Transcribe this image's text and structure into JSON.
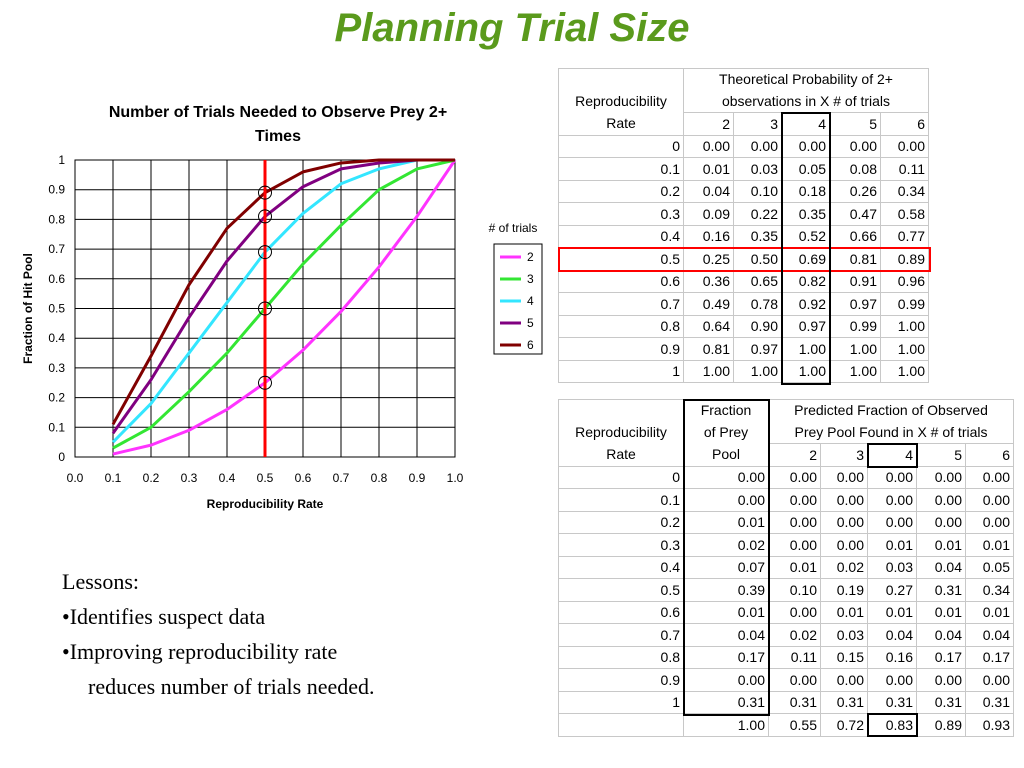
{
  "slide_title": "Planning Trial Size",
  "chart_data": {
    "type": "line",
    "title": "Number of Trials Needed to Observe Prey 2+ Times",
    "xlabel": "Reproducibility Rate",
    "ylabel": "Fraction of Hit Pool",
    "x": [
      0.1,
      0.2,
      0.3,
      0.4,
      0.5,
      0.6,
      0.7,
      0.8,
      0.9,
      1.0
    ],
    "xlim": [
      0.0,
      1.0
    ],
    "ylim": [
      0,
      1
    ],
    "xticks": [
      "0.0",
      "0.1",
      "0.2",
      "0.3",
      "0.4",
      "0.5",
      "0.6",
      "0.7",
      "0.8",
      "0.9",
      "1.0"
    ],
    "yticks": [
      "0",
      "0.1",
      "0.2",
      "0.3",
      "0.4",
      "0.5",
      "0.6",
      "0.7",
      "0.8",
      "0.9",
      "1"
    ],
    "grid": true,
    "legend_title": "# of trials",
    "legend_position": "right",
    "series": [
      {
        "name": "2",
        "color": "#ff33ff",
        "values": [
          0.01,
          0.04,
          0.09,
          0.16,
          0.25,
          0.36,
          0.49,
          0.64,
          0.81,
          1.0
        ]
      },
      {
        "name": "3",
        "color": "#33e633",
        "values": [
          0.03,
          0.1,
          0.22,
          0.35,
          0.5,
          0.65,
          0.78,
          0.9,
          0.97,
          1.0
        ]
      },
      {
        "name": "4",
        "color": "#33e6ff",
        "values": [
          0.05,
          0.18,
          0.35,
          0.52,
          0.69,
          0.82,
          0.92,
          0.97,
          1.0,
          1.0
        ]
      },
      {
        "name": "5",
        "color": "#800080",
        "values": [
          0.08,
          0.26,
          0.47,
          0.66,
          0.81,
          0.91,
          0.97,
          0.99,
          1.0,
          1.0
        ]
      },
      {
        "name": "6",
        "color": "#800000",
        "values": [
          0.11,
          0.34,
          0.58,
          0.77,
          0.89,
          0.96,
          0.99,
          1.0,
          1.0,
          1.0
        ]
      }
    ],
    "marker_line": {
      "x": 0.5,
      "color": "#ff0000"
    },
    "circled_points": [
      0.25,
      0.5,
      0.69,
      0.81,
      0.89
    ]
  },
  "table1": {
    "rate_header": [
      "Reproducibility",
      "Rate"
    ],
    "group_header": [
      "Theoretical Probability of 2+",
      "observations in X # of trials"
    ],
    "trials": [
      "2",
      "3",
      "4",
      "5",
      "6"
    ],
    "rows": [
      {
        "rate": "0",
        "vals": [
          "0.00",
          "0.00",
          "0.00",
          "0.00",
          "0.00"
        ]
      },
      {
        "rate": "0.1",
        "vals": [
          "0.01",
          "0.03",
          "0.05",
          "0.08",
          "0.11"
        ]
      },
      {
        "rate": "0.2",
        "vals": [
          "0.04",
          "0.10",
          "0.18",
          "0.26",
          "0.34"
        ]
      },
      {
        "rate": "0.3",
        "vals": [
          "0.09",
          "0.22",
          "0.35",
          "0.47",
          "0.58"
        ]
      },
      {
        "rate": "0.4",
        "vals": [
          "0.16",
          "0.35",
          "0.52",
          "0.66",
          "0.77"
        ]
      },
      {
        "rate": "0.5",
        "vals": [
          "0.25",
          "0.50",
          "0.69",
          "0.81",
          "0.89"
        ]
      },
      {
        "rate": "0.6",
        "vals": [
          "0.36",
          "0.65",
          "0.82",
          "0.91",
          "0.96"
        ]
      },
      {
        "rate": "0.7",
        "vals": [
          "0.49",
          "0.78",
          "0.92",
          "0.97",
          "0.99"
        ]
      },
      {
        "rate": "0.8",
        "vals": [
          "0.64",
          "0.90",
          "0.97",
          "0.99",
          "1.00"
        ]
      },
      {
        "rate": "0.9",
        "vals": [
          "0.81",
          "0.97",
          "1.00",
          "1.00",
          "1.00"
        ]
      },
      {
        "rate": "1",
        "vals": [
          "1.00",
          "1.00",
          "1.00",
          "1.00",
          "1.00"
        ]
      }
    ],
    "highlight_color": "#ff0000"
  },
  "table2": {
    "rate_header": [
      "Reproducibility",
      "Rate"
    ],
    "fraction_header": [
      "Fraction",
      "of Prey",
      "Pool"
    ],
    "group_header": [
      "Predicted Fraction of Observed",
      "Prey Pool Found in X # of trials"
    ],
    "trials": [
      "2",
      "3",
      "4",
      "5",
      "6"
    ],
    "rows": [
      {
        "rate": "0",
        "frac": "0.00",
        "vals": [
          "0.00",
          "0.00",
          "0.00",
          "0.00",
          "0.00"
        ]
      },
      {
        "rate": "0.1",
        "frac": "0.00",
        "vals": [
          "0.00",
          "0.00",
          "0.00",
          "0.00",
          "0.00"
        ]
      },
      {
        "rate": "0.2",
        "frac": "0.01",
        "vals": [
          "0.00",
          "0.00",
          "0.00",
          "0.00",
          "0.00"
        ]
      },
      {
        "rate": "0.3",
        "frac": "0.02",
        "vals": [
          "0.00",
          "0.00",
          "0.01",
          "0.01",
          "0.01"
        ]
      },
      {
        "rate": "0.4",
        "frac": "0.07",
        "vals": [
          "0.01",
          "0.02",
          "0.03",
          "0.04",
          "0.05"
        ]
      },
      {
        "rate": "0.5",
        "frac": "0.39",
        "vals": [
          "0.10",
          "0.19",
          "0.27",
          "0.31",
          "0.34"
        ]
      },
      {
        "rate": "0.6",
        "frac": "0.01",
        "vals": [
          "0.00",
          "0.01",
          "0.01",
          "0.01",
          "0.01"
        ]
      },
      {
        "rate": "0.7",
        "frac": "0.04",
        "vals": [
          "0.02",
          "0.03",
          "0.04",
          "0.04",
          "0.04"
        ]
      },
      {
        "rate": "0.8",
        "frac": "0.17",
        "vals": [
          "0.11",
          "0.15",
          "0.16",
          "0.17",
          "0.17"
        ]
      },
      {
        "rate": "0.9",
        "frac": "0.00",
        "vals": [
          "0.00",
          "0.00",
          "0.00",
          "0.00",
          "0.00"
        ]
      },
      {
        "rate": "1",
        "frac": "0.31",
        "vals": [
          "0.31",
          "0.31",
          "0.31",
          "0.31",
          "0.31"
        ]
      }
    ],
    "totals": {
      "frac": "1.00",
      "vals": [
        "0.55",
        "0.72",
        "0.83",
        "0.89",
        "0.93"
      ]
    }
  },
  "lessons": {
    "heading": "Lessons:",
    "items": [
      "•Identifies suspect data",
      "•Improving reproducibility rate",
      "reduces number of trials needed."
    ]
  }
}
